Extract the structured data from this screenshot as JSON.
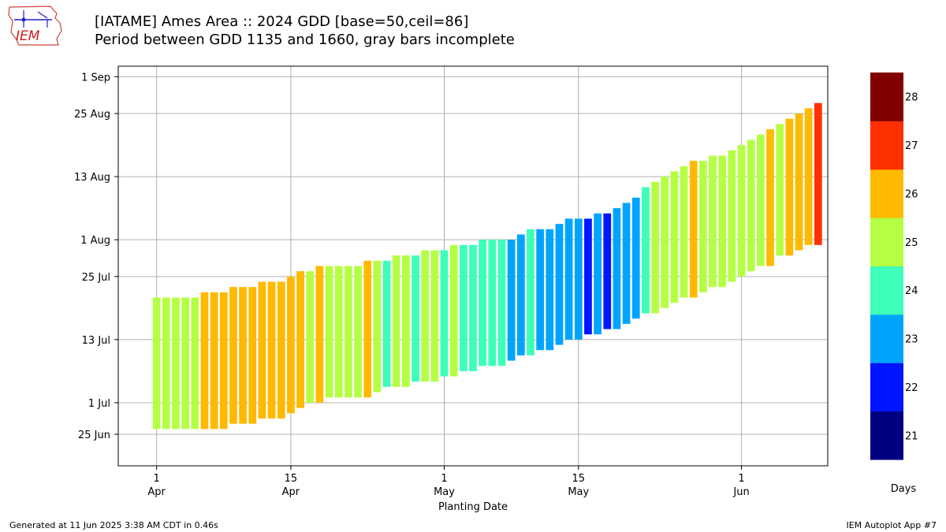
{
  "logo": {
    "text": "IEM"
  },
  "footer": {
    "left": "Generated at 11 Jun 2025 3:38 AM CDT in 0.46s",
    "right": "IEM Autoplot App #7"
  },
  "chart_data": {
    "type": "bar",
    "title": "[IATAME] Ames Area :: 2024 GDD [base=50,ceil=86]",
    "subtitle": "Period between GDD 1135 and 1660, gray bars incomplete",
    "xlabel": "Planting Date",
    "ylabel": "",
    "x_ticks": [
      {
        "date": "2024-04-01",
        "day": "1",
        "month": "Apr"
      },
      {
        "date": "2024-04-15",
        "day": "15",
        "month": "Apr"
      },
      {
        "date": "2024-05-01",
        "day": "1",
        "month": "May"
      },
      {
        "date": "2024-05-15",
        "day": "15",
        "month": "May"
      },
      {
        "date": "2024-06-01",
        "day": "1",
        "month": "Jun"
      }
    ],
    "y_ticks": [
      {
        "date": "2024-06-25",
        "label": "25 Jun"
      },
      {
        "date": "2024-07-01",
        "label": "1 Jul"
      },
      {
        "date": "2024-07-13",
        "label": "13 Jul"
      },
      {
        "date": "2024-07-25",
        "label": "25 Jul"
      },
      {
        "date": "2024-08-01",
        "label": "1 Aug"
      },
      {
        "date": "2024-08-13",
        "label": "13 Aug"
      },
      {
        "date": "2024-08-25",
        "label": "25 Aug"
      },
      {
        "date": "2024-09-01",
        "label": "1 Sep"
      }
    ],
    "xlim": [
      "2024-03-28",
      "2024-06-10"
    ],
    "ylim": [
      "2024-06-19",
      "2024-09-03"
    ],
    "grid": true,
    "colorbar": {
      "label": "Days",
      "levels": [
        {
          "days": 21,
          "color": "#000080"
        },
        {
          "days": 22,
          "color": "#0015ff"
        },
        {
          "days": 23,
          "color": "#00a4ff"
        },
        {
          "days": 24,
          "color": "#3dffb9"
        },
        {
          "days": 25,
          "color": "#b4ff43"
        },
        {
          "days": 26,
          "color": "#ffb900"
        },
        {
          "days": 27,
          "color": "#ff3000"
        },
        {
          "days": 28,
          "color": "#800000"
        }
      ]
    },
    "bars": [
      {
        "planting": "2024-04-01",
        "start": "2024-06-26",
        "end": "2024-07-21",
        "days": 25
      },
      {
        "planting": "2024-04-02",
        "start": "2024-06-26",
        "end": "2024-07-21",
        "days": 25
      },
      {
        "planting": "2024-04-03",
        "start": "2024-06-26",
        "end": "2024-07-21",
        "days": 25
      },
      {
        "planting": "2024-04-04",
        "start": "2024-06-26",
        "end": "2024-07-21",
        "days": 25
      },
      {
        "planting": "2024-04-05",
        "start": "2024-06-26",
        "end": "2024-07-21",
        "days": 25
      },
      {
        "planting": "2024-04-06",
        "start": "2024-06-26",
        "end": "2024-07-22",
        "days": 26
      },
      {
        "planting": "2024-04-07",
        "start": "2024-06-26",
        "end": "2024-07-22",
        "days": 26
      },
      {
        "planting": "2024-04-08",
        "start": "2024-06-26",
        "end": "2024-07-22",
        "days": 26
      },
      {
        "planting": "2024-04-09",
        "start": "2024-06-27",
        "end": "2024-07-23",
        "days": 26
      },
      {
        "planting": "2024-04-10",
        "start": "2024-06-27",
        "end": "2024-07-23",
        "days": 26
      },
      {
        "planting": "2024-04-11",
        "start": "2024-06-27",
        "end": "2024-07-23",
        "days": 26
      },
      {
        "planting": "2024-04-12",
        "start": "2024-06-28",
        "end": "2024-07-24",
        "days": 26
      },
      {
        "planting": "2024-04-13",
        "start": "2024-06-28",
        "end": "2024-07-24",
        "days": 26
      },
      {
        "planting": "2024-04-14",
        "start": "2024-06-28",
        "end": "2024-07-24",
        "days": 26
      },
      {
        "planting": "2024-04-15",
        "start": "2024-06-29",
        "end": "2024-07-25",
        "days": 26
      },
      {
        "planting": "2024-04-16",
        "start": "2024-06-30",
        "end": "2024-07-26",
        "days": 26
      },
      {
        "planting": "2024-04-17",
        "start": "2024-07-01",
        "end": "2024-07-26",
        "days": 25
      },
      {
        "planting": "2024-04-18",
        "start": "2024-07-01",
        "end": "2024-07-27",
        "days": 26
      },
      {
        "planting": "2024-04-19",
        "start": "2024-07-02",
        "end": "2024-07-27",
        "days": 25
      },
      {
        "planting": "2024-04-20",
        "start": "2024-07-02",
        "end": "2024-07-27",
        "days": 25
      },
      {
        "planting": "2024-04-21",
        "start": "2024-07-02",
        "end": "2024-07-27",
        "days": 25
      },
      {
        "planting": "2024-04-22",
        "start": "2024-07-02",
        "end": "2024-07-27",
        "days": 25
      },
      {
        "planting": "2024-04-23",
        "start": "2024-07-02",
        "end": "2024-07-28",
        "days": 26
      },
      {
        "planting": "2024-04-24",
        "start": "2024-07-03",
        "end": "2024-07-28",
        "days": 25
      },
      {
        "planting": "2024-04-25",
        "start": "2024-07-04",
        "end": "2024-07-28",
        "days": 24
      },
      {
        "planting": "2024-04-26",
        "start": "2024-07-04",
        "end": "2024-07-29",
        "days": 25
      },
      {
        "planting": "2024-04-27",
        "start": "2024-07-04",
        "end": "2024-07-29",
        "days": 25
      },
      {
        "planting": "2024-04-28",
        "start": "2024-07-05",
        "end": "2024-07-29",
        "days": 24
      },
      {
        "planting": "2024-04-29",
        "start": "2024-07-05",
        "end": "2024-07-30",
        "days": 25
      },
      {
        "planting": "2024-04-30",
        "start": "2024-07-05",
        "end": "2024-07-30",
        "days": 25
      },
      {
        "planting": "2024-05-01",
        "start": "2024-07-06",
        "end": "2024-07-30",
        "days": 24
      },
      {
        "planting": "2024-05-02",
        "start": "2024-07-06",
        "end": "2024-07-31",
        "days": 25
      },
      {
        "planting": "2024-05-03",
        "start": "2024-07-07",
        "end": "2024-07-31",
        "days": 24
      },
      {
        "planting": "2024-05-04",
        "start": "2024-07-07",
        "end": "2024-07-31",
        "days": 24
      },
      {
        "planting": "2024-05-05",
        "start": "2024-07-08",
        "end": "2024-08-01",
        "days": 24
      },
      {
        "planting": "2024-05-06",
        "start": "2024-07-08",
        "end": "2024-08-01",
        "days": 24
      },
      {
        "planting": "2024-05-07",
        "start": "2024-07-08",
        "end": "2024-08-01",
        "days": 24
      },
      {
        "planting": "2024-05-08",
        "start": "2024-07-09",
        "end": "2024-08-01",
        "days": 23
      },
      {
        "planting": "2024-05-09",
        "start": "2024-07-10",
        "end": "2024-08-02",
        "days": 23
      },
      {
        "planting": "2024-05-10",
        "start": "2024-07-10",
        "end": "2024-08-03",
        "days": 24
      },
      {
        "planting": "2024-05-11",
        "start": "2024-07-11",
        "end": "2024-08-03",
        "days": 23
      },
      {
        "planting": "2024-05-12",
        "start": "2024-07-11",
        "end": "2024-08-03",
        "days": 23
      },
      {
        "planting": "2024-05-13",
        "start": "2024-07-12",
        "end": "2024-08-04",
        "days": 23
      },
      {
        "planting": "2024-05-14",
        "start": "2024-07-13",
        "end": "2024-08-05",
        "days": 23
      },
      {
        "planting": "2024-05-15",
        "start": "2024-07-13",
        "end": "2024-08-05",
        "days": 23
      },
      {
        "planting": "2024-05-16",
        "start": "2024-07-14",
        "end": "2024-08-05",
        "days": 22
      },
      {
        "planting": "2024-05-17",
        "start": "2024-07-14",
        "end": "2024-08-06",
        "days": 23
      },
      {
        "planting": "2024-05-18",
        "start": "2024-07-15",
        "end": "2024-08-06",
        "days": 22
      },
      {
        "planting": "2024-05-19",
        "start": "2024-07-15",
        "end": "2024-08-07",
        "days": 23
      },
      {
        "planting": "2024-05-20",
        "start": "2024-07-16",
        "end": "2024-08-08",
        "days": 23
      },
      {
        "planting": "2024-05-21",
        "start": "2024-07-17",
        "end": "2024-08-09",
        "days": 23
      },
      {
        "planting": "2024-05-22",
        "start": "2024-07-18",
        "end": "2024-08-11",
        "days": 24
      },
      {
        "planting": "2024-05-23",
        "start": "2024-07-18",
        "end": "2024-08-12",
        "days": 25
      },
      {
        "planting": "2024-05-24",
        "start": "2024-07-19",
        "end": "2024-08-13",
        "days": 25
      },
      {
        "planting": "2024-05-25",
        "start": "2024-07-20",
        "end": "2024-08-14",
        "days": 25
      },
      {
        "planting": "2024-05-26",
        "start": "2024-07-21",
        "end": "2024-08-15",
        "days": 25
      },
      {
        "planting": "2024-05-27",
        "start": "2024-07-21",
        "end": "2024-08-16",
        "days": 26
      },
      {
        "planting": "2024-05-28",
        "start": "2024-07-22",
        "end": "2024-08-16",
        "days": 25
      },
      {
        "planting": "2024-05-29",
        "start": "2024-07-23",
        "end": "2024-08-17",
        "days": 25
      },
      {
        "planting": "2024-05-30",
        "start": "2024-07-23",
        "end": "2024-08-17",
        "days": 25
      },
      {
        "planting": "2024-05-31",
        "start": "2024-07-24",
        "end": "2024-08-18",
        "days": 25
      },
      {
        "planting": "2024-06-01",
        "start": "2024-07-25",
        "end": "2024-08-19",
        "days": 25
      },
      {
        "planting": "2024-06-02",
        "start": "2024-07-26",
        "end": "2024-08-20",
        "days": 25
      },
      {
        "planting": "2024-06-03",
        "start": "2024-07-27",
        "end": "2024-08-21",
        "days": 25
      },
      {
        "planting": "2024-06-04",
        "start": "2024-07-27",
        "end": "2024-08-22",
        "days": 26
      },
      {
        "planting": "2024-06-05",
        "start": "2024-07-29",
        "end": "2024-08-23",
        "days": 25
      },
      {
        "planting": "2024-06-06",
        "start": "2024-07-29",
        "end": "2024-08-24",
        "days": 26
      },
      {
        "planting": "2024-06-07",
        "start": "2024-07-30",
        "end": "2024-08-25",
        "days": 26
      },
      {
        "planting": "2024-06-08",
        "start": "2024-07-31",
        "end": "2024-08-26",
        "days": 26
      },
      {
        "planting": "2024-06-09",
        "start": "2024-07-31",
        "end": "2024-08-27",
        "days": 27
      }
    ]
  }
}
